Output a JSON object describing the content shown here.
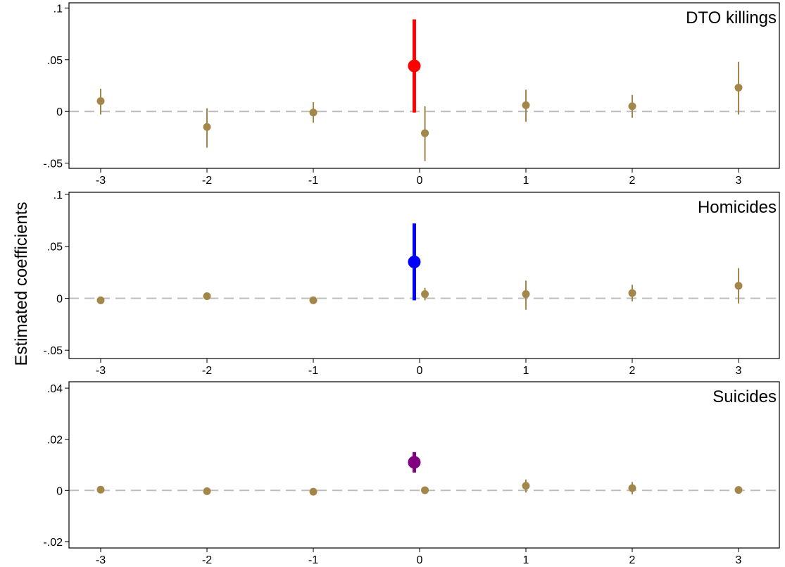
{
  "ylabel": "Estimated coefficients",
  "colors": {
    "baseline_points": "#a3874a",
    "zero_line": "#bdbdbd",
    "axis": "#000000"
  },
  "chart_data": [
    {
      "type": "scatter",
      "title": "DTO killings",
      "x_ticks": [
        "-3",
        "-2",
        "-1",
        "0",
        "1",
        "2",
        "3"
      ],
      "y_ticks": [
        ".1",
        ".05",
        "0",
        "-.05"
      ],
      "ylim": [
        -0.055,
        0.105
      ],
      "reference_line": 0,
      "series": [
        {
          "color": "#a3874a",
          "points": [
            {
              "x": -3,
              "y": 0.01,
              "lo": -0.003,
              "hi": 0.022
            },
            {
              "x": -2,
              "y": -0.015,
              "lo": -0.035,
              "hi": 0.003
            },
            {
              "x": -1,
              "y": -0.001,
              "lo": -0.011,
              "hi": 0.009
            },
            {
              "x": 0.05,
              "y": -0.021,
              "lo": -0.048,
              "hi": 0.005
            },
            {
              "x": 1,
              "y": 0.006,
              "lo": -0.01,
              "hi": 0.021
            },
            {
              "x": 2,
              "y": 0.005,
              "lo": -0.006,
              "hi": 0.016
            },
            {
              "x": 3,
              "y": 0.023,
              "lo": -0.003,
              "hi": 0.048
            }
          ]
        },
        {
          "color": "#ff0000",
          "highlight": true,
          "points": [
            {
              "x": -0.05,
              "y": 0.044,
              "lo": -0.001,
              "hi": 0.089
            }
          ]
        }
      ]
    },
    {
      "type": "scatter",
      "title": "Homicides",
      "x_ticks": [
        "-3",
        "-2",
        "-1",
        "0",
        "1",
        "2",
        "3"
      ],
      "y_ticks": [
        ".1",
        ".05",
        "0",
        "-.05"
      ],
      "ylim": [
        -0.058,
        0.102
      ],
      "reference_line": 0,
      "series": [
        {
          "color": "#a3874a",
          "points": [
            {
              "x": -3,
              "y": -0.002,
              "lo": -0.003,
              "hi": -0.001
            },
            {
              "x": -2,
              "y": 0.002,
              "lo": 0.0,
              "hi": 0.003
            },
            {
              "x": -1,
              "y": -0.002,
              "lo": -0.003,
              "hi": -0.001
            },
            {
              "x": 0.05,
              "y": 0.004,
              "lo": -0.002,
              "hi": 0.01
            },
            {
              "x": 1,
              "y": 0.004,
              "lo": -0.011,
              "hi": 0.017
            },
            {
              "x": 2,
              "y": 0.005,
              "lo": -0.003,
              "hi": 0.013
            },
            {
              "x": 3,
              "y": 0.012,
              "lo": -0.005,
              "hi": 0.029
            }
          ]
        },
        {
          "color": "#0000ff",
          "highlight": true,
          "points": [
            {
              "x": -0.05,
              "y": 0.035,
              "lo": -0.002,
              "hi": 0.072
            }
          ]
        }
      ]
    },
    {
      "type": "scatter",
      "title": "Suicides",
      "x_ticks": [
        "-3",
        "-2",
        "-1",
        "0",
        "1",
        "2",
        "3"
      ],
      "y_ticks": [
        ".04",
        ".02",
        "0",
        "-.02"
      ],
      "ylim": [
        -0.0225,
        0.0425
      ],
      "reference_line": 0,
      "series": [
        {
          "color": "#a3874a",
          "points": [
            {
              "x": -3,
              "y": 0.0003,
              "lo": -0.0002,
              "hi": 0.0008
            },
            {
              "x": -2,
              "y": -0.0003,
              "lo": -0.0008,
              "hi": 0.0002
            },
            {
              "x": -1,
              "y": -0.0005,
              "lo": -0.001,
              "hi": 0.0
            },
            {
              "x": 0.05,
              "y": 0.0001,
              "lo": -0.0004,
              "hi": 0.0006
            },
            {
              "x": 1,
              "y": 0.0018,
              "lo": -0.0008,
              "hi": 0.0043
            },
            {
              "x": 2,
              "y": 0.0009,
              "lo": -0.0015,
              "hi": 0.0033
            },
            {
              "x": 3,
              "y": 0.0002,
              "lo": -0.0004,
              "hi": 0.0008
            }
          ]
        },
        {
          "color": "#800080",
          "highlight": true,
          "points": [
            {
              "x": -0.05,
              "y": 0.011,
              "lo": 0.007,
              "hi": 0.015
            }
          ]
        }
      ]
    }
  ]
}
